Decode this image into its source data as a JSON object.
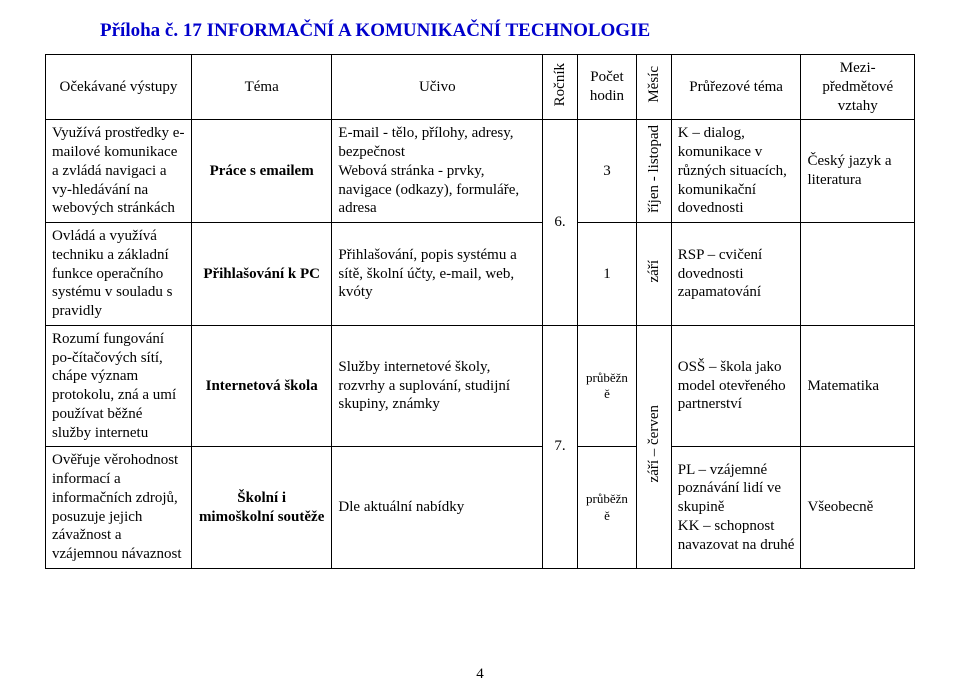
{
  "doc_title": "Příloha č. 17  INFORMAČNÍ A KOMUNIKAČNÍ TECHNOLOGIE",
  "page_number": "4",
  "headers": {
    "vystupy": "Očekávané výstupy",
    "tema": "Téma",
    "ucivo": "Učivo",
    "rocnik": "Ročník",
    "hodin": "Počet hodin",
    "mesic": "Měsíc",
    "prurez": "Průřezové téma",
    "vztahy": "Mezi-předmětové vztahy"
  },
  "rows": [
    {
      "vystupy": "Využívá prostředky e-mailové komunikace a zvládá navigaci a vy-hledávání na webových stránkách",
      "tema": "Práce s emailem",
      "ucivo": "E-mail - tělo, přílohy, adresy, bezpečnost\nWebová stránka - prvky, navigace (odkazy), formuláře, adresa",
      "rocnik": "6.",
      "hodin": "3",
      "mesic": "říjen - listopad",
      "prurez": "K – dialog, komunikace v různých situacích, komunikační dovednosti",
      "vztahy": "Český jazyk a literatura"
    },
    {
      "vystupy": "Ovládá a využívá techniku a základní funkce operačního systému v souladu s pravidly",
      "tema": "Přihlašování k PC",
      "ucivo": "Přihlašování, popis systému a sítě, školní účty, e-mail, web, kvóty",
      "rocnik": "",
      "hodin": "1",
      "mesic": "září",
      "prurez": "RSP – cvičení dovednosti zapamatování",
      "vztahy": ""
    },
    {
      "vystupy": "Rozumí fungování po-čítačových sítí, chápe význam protokolu, zná a umí používat běžné služby internetu",
      "tema": "Internetová škola",
      "ucivo": "Služby internetové školy, rozvrhy a suplování, studijní skupiny, známky",
      "rocnik": "7.",
      "hodin": "průběžně",
      "mesic": "",
      "prurez": "OSŠ – škola jako model otevřeného partnerství",
      "vztahy": "Matematika"
    },
    {
      "vystupy": "Ověřuje věrohodnost informací a informačních zdrojů, posuzuje jejich závažnost a vzájemnou návaznost",
      "tema": "Školní i mimoškolní soutěže",
      "ucivo": "Dle aktuální nabídky",
      "rocnik": "",
      "hodin": "průběžně",
      "mesic": "září – červen",
      "prurez": "PL – vzájemné poznávání lidí ve skupině\nKK – schopnost navazovat na druhé",
      "vztahy": "Všeobecně"
    }
  ]
}
